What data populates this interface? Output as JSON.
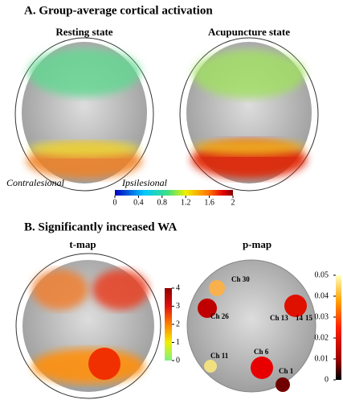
{
  "panel_a": {
    "title": "A. Group-average cortical activation",
    "left_label": "Resting state",
    "right_label": "Acupuncture state",
    "side_left": "Contralesional",
    "side_right": "Ipsilesional",
    "colorbar": {
      "lim": [
        0,
        2
      ],
      "ticks": [
        0,
        0.4,
        0.8,
        1.2,
        1.6,
        2
      ]
    }
  },
  "panel_b": {
    "title": "B. Significantly increased WA",
    "left_label": "t-map",
    "right_label": "p-map",
    "t_colorbar": {
      "lim": [
        0,
        4
      ],
      "ticks": [
        0,
        1,
        2,
        3,
        4
      ]
    },
    "p_colorbar": {
      "lim": [
        0,
        0.05
      ],
      "ticks": [
        0,
        0.01,
        0.02,
        0.03,
        0.04,
        0.05
      ]
    },
    "channels": [
      "Ch 30",
      "Ch 26",
      "Ch 13",
      "14",
      "15",
      "Ch 11",
      "Ch 6",
      "Ch 1"
    ]
  }
}
